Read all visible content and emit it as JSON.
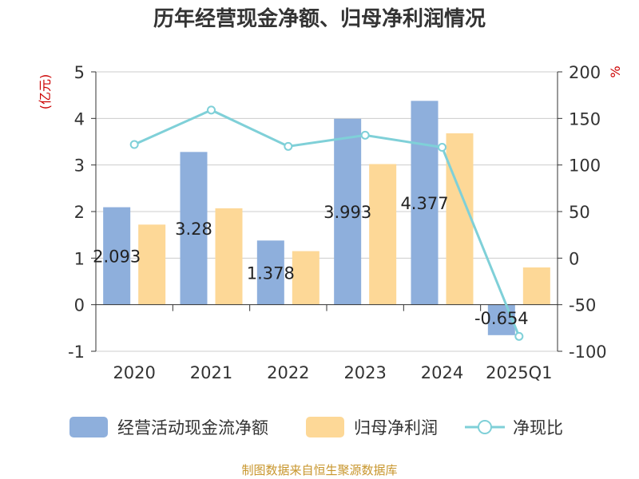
{
  "chart_data": {
    "type": "bar",
    "title": "历年经营现金净额、归母净利润情况",
    "categories": [
      "2020",
      "2021",
      "2022",
      "2023",
      "2024",
      "2025Q1"
    ],
    "y_left": {
      "unit": "(亿元)",
      "ylim": [
        -1,
        5
      ],
      "ticks": [
        -1,
        0,
        1,
        2,
        3,
        4,
        5
      ]
    },
    "y_right": {
      "unit": "%",
      "ylim": [
        -100,
        200
      ],
      "ticks": [
        -100,
        -50,
        0,
        50,
        100,
        150,
        200
      ]
    },
    "series": [
      {
        "name": "经营活动现金流净额",
        "type": "bar",
        "axis": "left",
        "color": "#8eafdc",
        "values": [
          2.093,
          3.28,
          1.378,
          3.993,
          4.377,
          -0.654
        ],
        "labels": [
          "2.093",
          "3.28",
          "1.378",
          "3.993",
          "4.377",
          "-0.654"
        ]
      },
      {
        "name": "归母净利润",
        "type": "bar",
        "axis": "left",
        "color": "#fdd897",
        "values": [
          1.72,
          2.07,
          1.15,
          3.02,
          3.68,
          0.8
        ]
      },
      {
        "name": "净现比",
        "type": "line",
        "axis": "right",
        "color": "#7fd0d8",
        "values": [
          122,
          159,
          120,
          132,
          119,
          -84
        ]
      }
    ],
    "grid": true,
    "legend": "bottom"
  },
  "source": "制图数据来自恒生聚源数据库"
}
